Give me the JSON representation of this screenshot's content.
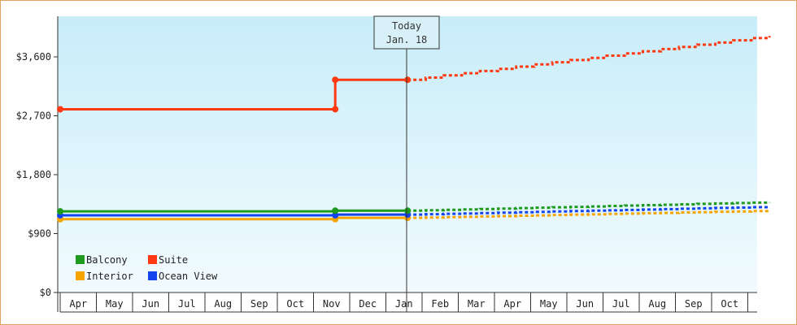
{
  "chart_data": {
    "type": "line",
    "today_label": [
      "Today",
      "Jan. 18"
    ],
    "y_ticks": [
      "$0",
      "$900",
      "$1,800",
      "$2,700",
      "$3,600"
    ],
    "y_tick_values": [
      0,
      900,
      1800,
      2700,
      3600
    ],
    "ylim": [
      0,
      3600
    ],
    "months": [
      "Apr",
      "May",
      "Jun",
      "Jul",
      "Aug",
      "Sep",
      "Oct",
      "Nov",
      "Dec",
      "Jan",
      "Feb",
      "Mar",
      "Apr",
      "May",
      "Jun",
      "Jul",
      "Aug",
      "Sep",
      "Oct"
    ],
    "today_index": 9,
    "series": [
      {
        "name": "Balcony",
        "color": "#1e9a1e",
        "history": [
          [
            0,
            1240
          ],
          [
            7.6,
            1240
          ],
          [
            7.6,
            1250
          ],
          [
            9.6,
            1250
          ]
        ],
        "markers": [
          [
            0,
            1240
          ],
          [
            7.6,
            1250
          ],
          [
            9.6,
            1250
          ]
        ],
        "forecast": [
          [
            9.6,
            1250
          ],
          [
            19.6,
            1380
          ]
        ]
      },
      {
        "name": "Suite",
        "color": "#ff3a12",
        "history": [
          [
            0,
            2800
          ],
          [
            7.6,
            2800
          ],
          [
            7.6,
            3250
          ],
          [
            9.6,
            3250
          ]
        ],
        "markers": [
          [
            0,
            2800
          ],
          [
            7.6,
            2800
          ],
          [
            7.6,
            3250
          ],
          [
            9.6,
            3250
          ]
        ],
        "forecast": [
          [
            9.6,
            3250
          ],
          [
            19.6,
            3920
          ]
        ]
      },
      {
        "name": "Interior",
        "color": "#f5a400",
        "history": [
          [
            0,
            1120
          ],
          [
            7.6,
            1120
          ],
          [
            7.6,
            1140
          ],
          [
            9.6,
            1140
          ]
        ],
        "markers": [
          [
            0,
            1120
          ],
          [
            7.6,
            1120
          ],
          [
            9.6,
            1140
          ]
        ],
        "forecast": [
          [
            9.6,
            1140
          ],
          [
            19.6,
            1250
          ]
        ]
      },
      {
        "name": "Ocean View",
        "color": "#1444ee",
        "history": [
          [
            0,
            1180
          ],
          [
            7.6,
            1180
          ],
          [
            7.6,
            1190
          ],
          [
            9.6,
            1190
          ]
        ],
        "markers": [
          [
            0,
            1180
          ],
          [
            7.6,
            1180
          ],
          [
            9.6,
            1190
          ]
        ],
        "forecast": [
          [
            9.6,
            1190
          ],
          [
            19.6,
            1310
          ]
        ]
      }
    ],
    "legend_order": [
      "Balcony",
      "Suite",
      "Interior",
      "Ocean View"
    ]
  }
}
